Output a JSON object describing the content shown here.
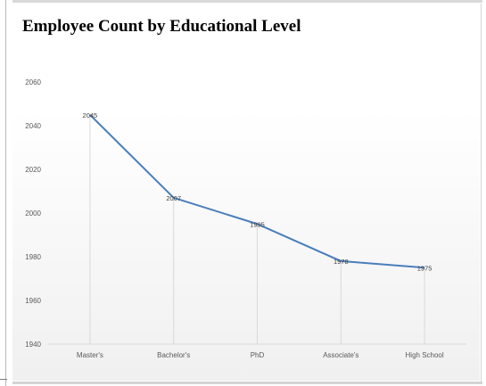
{
  "chart_data": {
    "type": "line",
    "title": "Employee Count by Educational Level",
    "xlabel": "",
    "ylabel": "",
    "categories": [
      "Master's",
      "Bachelor's",
      "PhD",
      "Associate's",
      "High School"
    ],
    "series": [
      {
        "values": [
          2045,
          2007,
          1995,
          1978,
          1975
        ]
      }
    ],
    "ylim": [
      1940,
      2060
    ],
    "yticks": [
      1940,
      1960,
      1980,
      2000,
      2020,
      2040,
      2060
    ],
    "grid": "vertical",
    "legend": "none",
    "data_labels": true
  },
  "colors": {
    "line": "#4a7ebb",
    "grid": "#d9d9d9",
    "axis": "#d9d9d9",
    "tick_text": "#595959",
    "label_text": "#404040"
  }
}
